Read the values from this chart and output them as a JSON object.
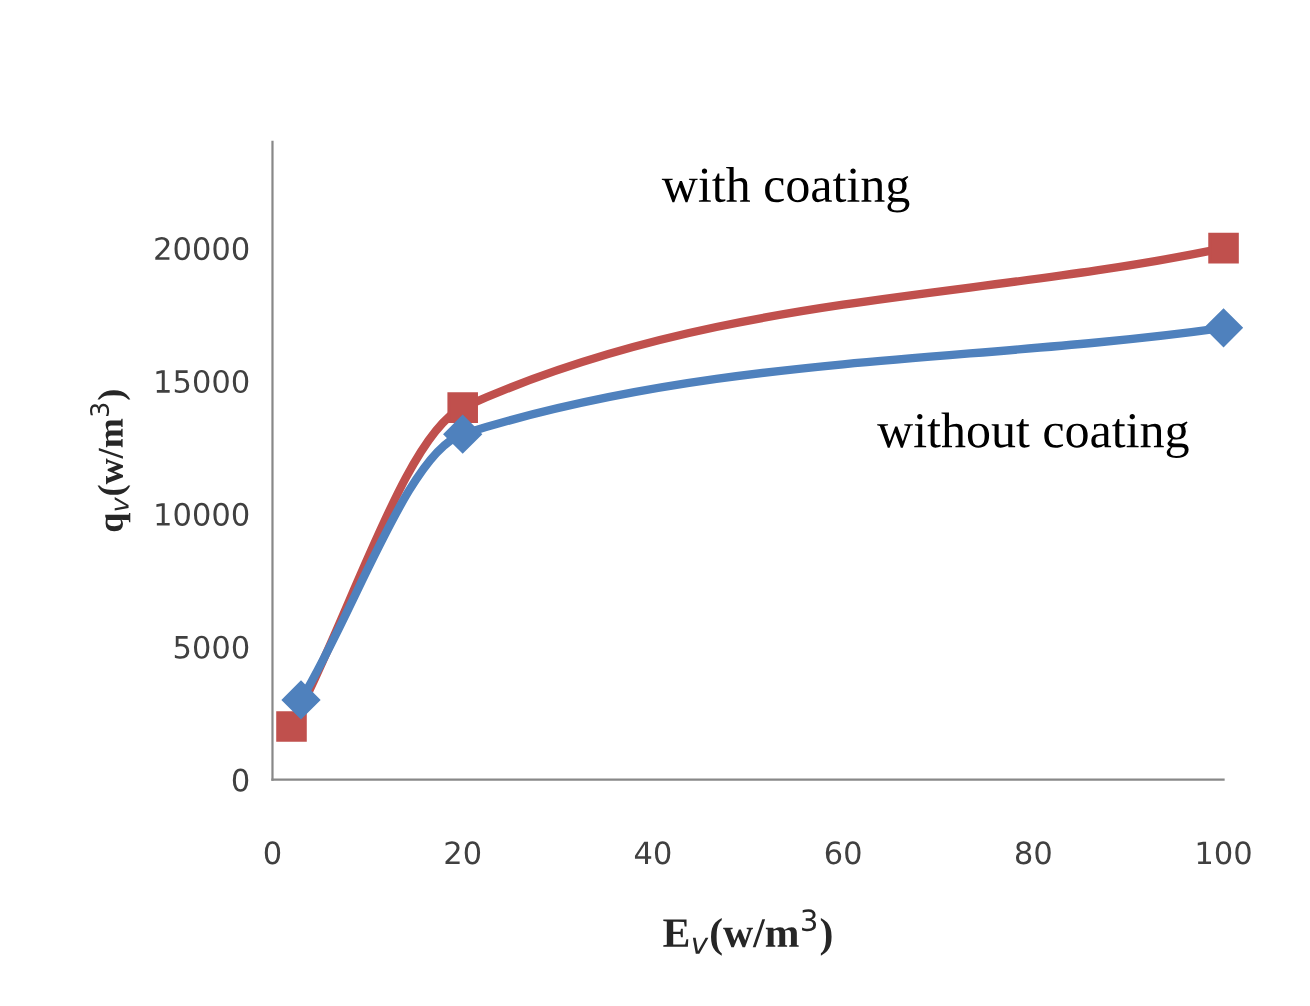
{
  "chart_data": {
    "type": "line",
    "xlabel": "E$_{v}$(w/m$^{3}$)",
    "ylabel": "q$_{v}$(w/m$^{3}$)",
    "xlim": [
      0,
      100
    ],
    "xticks": [
      0,
      20,
      40,
      60,
      80,
      100
    ],
    "ylim": [
      0,
      24000
    ],
    "yticks": [
      0,
      5000,
      10000,
      15000,
      20000
    ],
    "grid": false,
    "legend": false,
    "series": [
      {
        "name": "with coating",
        "color": "#c0504d",
        "marker": "square",
        "x": [
          2,
          20,
          100
        ],
        "values": [
          2000,
          14000,
          20000
        ]
      },
      {
        "name": "without coating",
        "color": "#4f81bd",
        "marker": "diamond",
        "x": [
          3,
          20,
          100
        ],
        "values": [
          3000,
          13000,
          17000
        ]
      }
    ]
  }
}
